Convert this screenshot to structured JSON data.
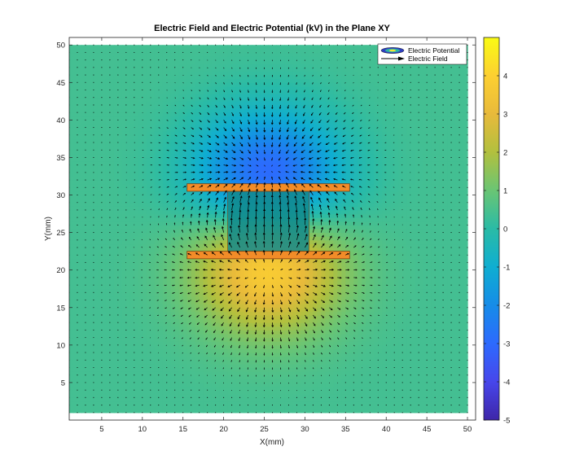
{
  "chart_data": {
    "type": "heatmap",
    "title": "Electric Field and Electric Potential (kV) in the Plane XY",
    "xlabel": "X(mm)",
    "ylabel": "Y(mm)",
    "xlim": [
      1,
      51
    ],
    "ylim": [
      0,
      51
    ],
    "data_extent": {
      "x": [
        1,
        50
      ],
      "y": [
        1,
        50
      ]
    },
    "x_ticks": [
      5,
      10,
      15,
      20,
      25,
      30,
      35,
      40,
      45,
      50
    ],
    "y_ticks": [
      5,
      10,
      15,
      20,
      25,
      30,
      35,
      40,
      45,
      50
    ],
    "grid": false,
    "legend": {
      "placement": "top-right",
      "entries": [
        "Electric Potential",
        "Electric Field"
      ]
    },
    "colorbar": {
      "colormap": "parula",
      "range": [
        -5,
        5
      ],
      "ticks": [
        -5,
        -4,
        -3,
        -2,
        -1,
        0,
        1,
        2,
        3,
        4
      ]
    },
    "potential_sources": [
      {
        "x": 25.5,
        "y": 21.5,
        "value_kv": 5.0,
        "spread_mm": 6.2,
        "sign": "positive"
      },
      {
        "x": 25.5,
        "y": 31.5,
        "value_kv": -5.0,
        "spread_mm": 6.2,
        "sign": "negative"
      }
    ],
    "potential_ambient_kv": 0.4,
    "quiver_spacing_mm": 1,
    "electrodes": [
      {
        "name": "top electrode",
        "x": [
          15.5,
          35.5
        ],
        "y": [
          30.5,
          31.5
        ]
      },
      {
        "name": "bottom electrode",
        "x": [
          15.5,
          35.5
        ],
        "y": [
          21.5,
          22.5
        ]
      }
    ],
    "dielectric": {
      "x": [
        20.5,
        30.5
      ],
      "y": [
        22.5,
        30.5
      ]
    },
    "colors": {
      "electrode_fill": "#f28c28",
      "electrode_edge": "#7a3e10",
      "dielectric_fill": "#128a8c",
      "arrow": "#000000"
    }
  }
}
